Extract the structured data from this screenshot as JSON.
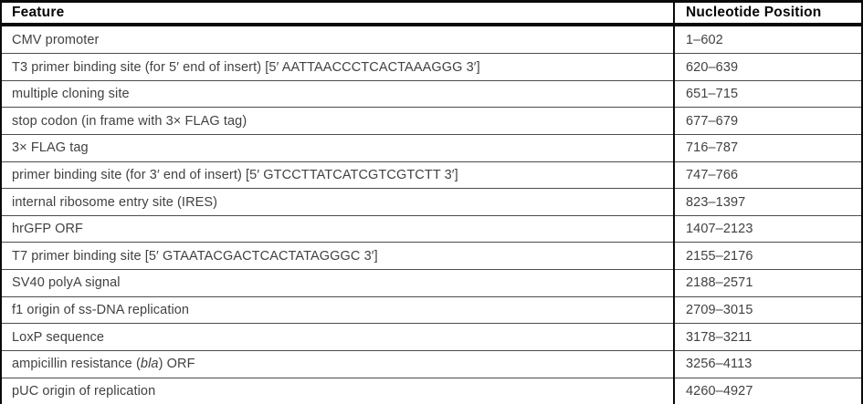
{
  "colors": {
    "background": "#ffffff",
    "border": "#0a0a0a",
    "row_divider": "#4c4c4c",
    "body_text": "#414141",
    "header_text": "#060606"
  },
  "table": {
    "headers": {
      "feature": "Feature",
      "position": "Nucleotide Position"
    },
    "rows": [
      {
        "feature": "CMV promoter",
        "position": "1–602"
      },
      {
        "feature": "T3 primer binding site (for 5′ end of insert) [5′ AATTAACCCTCACTAAAGGG 3′]",
        "position": "620–639"
      },
      {
        "feature": "multiple cloning site",
        "position": "651–715"
      },
      {
        "feature": "stop codon (in frame with 3× FLAG tag)",
        "position": "677–679"
      },
      {
        "feature": "3× FLAG tag",
        "position": "716–787"
      },
      {
        "feature": "primer binding site (for 3′ end of insert) [5′ GTCCTTATCATCGTCGTCTT 3′]",
        "position": "747–766"
      },
      {
        "feature": "internal ribosome entry site (IRES)",
        "position": "823–1397"
      },
      {
        "feature": "hrGFP ORF",
        "position": "1407–2123"
      },
      {
        "feature": "T7 primer binding site [5′ GTAATACGACTCACTATAGGGC 3′]",
        "position": "2155–2176"
      },
      {
        "feature": "SV40 polyA signal",
        "position": "2188–2571"
      },
      {
        "feature": "f1 origin of ss-DNA replication",
        "position": "2709–3015"
      },
      {
        "feature": "LoxP sequence",
        "position": "3178–3211"
      },
      {
        "feature_prefix": "ampicillin resistance (",
        "feature_italic": "bla",
        "feature_suffix": ") ORF",
        "position": "3256–4113"
      },
      {
        "feature": "pUC origin of replication",
        "position": "4260–4927"
      }
    ]
  }
}
